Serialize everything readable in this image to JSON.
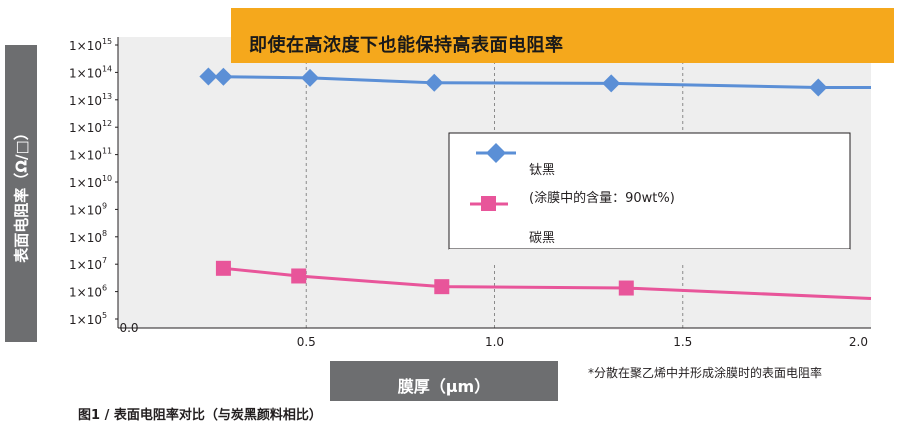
{
  "banner": {
    "text": "即使在高浓度下也能保持高表面电阻率"
  },
  "y_axis_title": "表面电阻率（Ω/□）",
  "x_axis_title": "膜厚（μm）",
  "footnote": "*分散在聚乙烯中并形成涂膜时的表面电阻率",
  "caption": "图1 / 表面电阻率对比（与炭黑颜料相比）",
  "colors": {
    "titanium_black": "#5b8fd6",
    "carbon_black": "#e8559a",
    "banner": "#f5a81c",
    "label_box": "#6d6e70",
    "plot_bg": "#eeeeee"
  },
  "chart_data": {
    "type": "line",
    "xlabel": "膜厚（μm）",
    "ylabel": "表面电阻率（Ω/□）",
    "xlim": [
      0.0,
      2.0
    ],
    "ylim": [
      5,
      15
    ],
    "y_scale": "log10",
    "x_tick_labels": [
      "0.0",
      "0.5",
      "1.0",
      "1.5",
      "2.0"
    ],
    "y_tick_labels": [
      "1×10^5",
      "1×10^6",
      "1×10^7",
      "1×10^8",
      "1×10^9",
      "1×10^10",
      "1×10^11",
      "1×10^12",
      "1×10^13",
      "1×10^14",
      "1×10^15"
    ],
    "grid": "vertical dashed",
    "legend": {
      "placement": "center-right",
      "entries": [
        "钛黑",
        "(涂膜中的含量：90wt%)",
        "碳黑"
      ]
    },
    "series": [
      {
        "name": "钛黑",
        "marker": "diamond",
        "color": "#5b8fd6",
        "points": [
          [
            0.24,
            13.85
          ],
          [
            0.28,
            13.84
          ],
          [
            0.51,
            13.8
          ],
          [
            0.84,
            13.62
          ],
          [
            1.31,
            13.6
          ],
          [
            1.86,
            13.45
          ]
        ],
        "line_end": [
          2.0,
          13.45
        ]
      },
      {
        "name": "碳黑",
        "marker": "square",
        "color": "#e8559a",
        "points": [
          [
            0.28,
            6.85
          ],
          [
            0.48,
            6.57
          ],
          [
            0.86,
            6.18
          ],
          [
            1.35,
            6.13
          ]
        ],
        "line_end": [
          2.0,
          5.75
        ]
      }
    ]
  }
}
